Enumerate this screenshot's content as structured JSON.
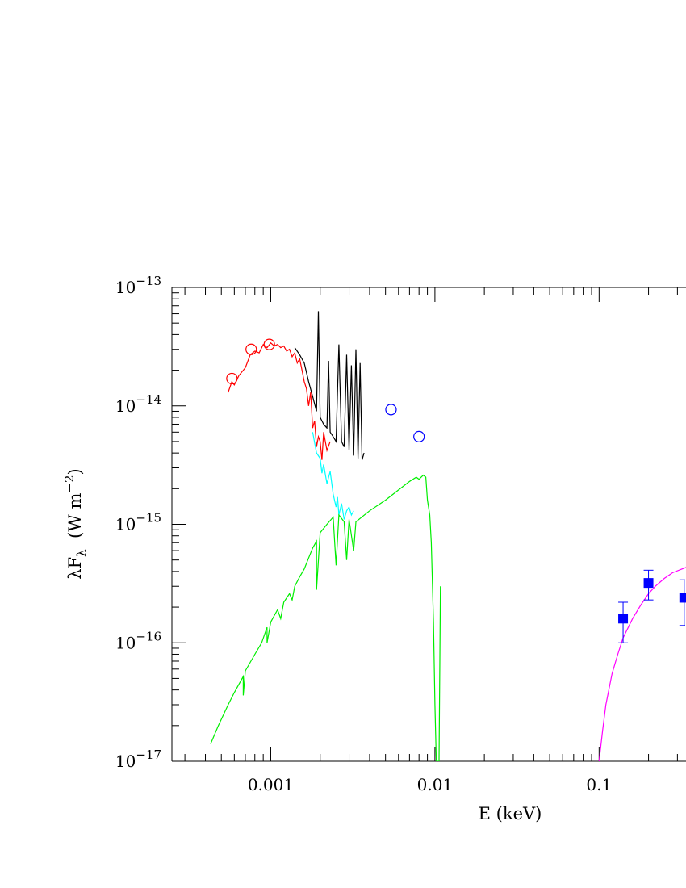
{
  "chart_data": {
    "type": "scatter",
    "title": "",
    "xlabel": "E (keV)",
    "ylabel": "λF_λ (W m^-2)",
    "xscale": "log",
    "yscale": "log",
    "xlim": [
      0.00025,
      0.35
    ],
    "ylim": [
      1e-17,
      1e-13
    ],
    "grid": false,
    "x_ticks": [
      {
        "value": 0.001,
        "label": "0.001"
      },
      {
        "value": 0.01,
        "label": "0.01"
      },
      {
        "value": 0.1,
        "label": "0.1"
      }
    ],
    "y_ticks": [
      {
        "value": 1e-13,
        "base": "10",
        "exp": "−13"
      },
      {
        "value": 1e-14,
        "base": "10",
        "exp": "−14"
      },
      {
        "value": 1e-15,
        "base": "10",
        "exp": "−15"
      },
      {
        "value": 1e-16,
        "base": "10",
        "exp": "−16"
      },
      {
        "value": 1e-17,
        "base": "10",
        "exp": "−17"
      }
    ],
    "ylabel_parts": {
      "lambda": "λ",
      "F": "F",
      "sub": "λ",
      "unit": "(W m",
      "exp": "−2",
      "close": ")"
    },
    "series": [
      {
        "kind": "line",
        "color": "#ff0000",
        "points": [
          [
            0.00055,
            1.3e-14
          ],
          [
            0.00058,
            1.6e-14
          ],
          [
            0.0006,
            1.5e-14
          ],
          [
            0.00064,
            1.8e-14
          ],
          [
            0.0007,
            2.1e-14
          ],
          [
            0.00075,
            2.7e-14
          ],
          [
            0.0008,
            2.9e-14
          ],
          [
            0.00085,
            2.8e-14
          ],
          [
            0.0009,
            3.3e-14
          ],
          [
            0.00095,
            3.1e-14
          ],
          [
            0.001,
            3.4e-14
          ],
          [
            0.00105,
            3.2e-14
          ],
          [
            0.0011,
            3.3e-14
          ],
          [
            0.00115,
            3.1e-14
          ],
          [
            0.0012,
            3.2e-14
          ],
          [
            0.00125,
            2.9e-14
          ],
          [
            0.0013,
            3e-14
          ],
          [
            0.00135,
            2.6e-14
          ],
          [
            0.0014,
            2.8e-14
          ],
          [
            0.00145,
            2.3e-14
          ],
          [
            0.0015,
            2.5e-14
          ],
          [
            0.00155,
            2e-14
          ],
          [
            0.0016,
            1.6e-14
          ],
          [
            0.00165,
            1.4e-14
          ],
          [
            0.0017,
            1e-14
          ],
          [
            0.00175,
            1.3e-14
          ],
          [
            0.0018,
            6.5e-15
          ],
          [
            0.00185,
            7.5e-15
          ],
          [
            0.0019,
            4.5e-15
          ],
          [
            0.00195,
            5.5e-15
          ],
          [
            0.002,
            5e-15
          ],
          [
            0.00205,
            3.5e-15
          ],
          [
            0.0021,
            6e-15
          ],
          [
            0.0022,
            4.2e-15
          ],
          [
            0.0023,
            5e-15
          ]
        ]
      },
      {
        "kind": "line",
        "color": "#000000",
        "points": [
          [
            0.0014,
            3.1e-14
          ],
          [
            0.0015,
            2.7e-14
          ],
          [
            0.0016,
            2.3e-14
          ],
          [
            0.0017,
            1.6e-14
          ],
          [
            0.0018,
            1.2e-14
          ],
          [
            0.0019,
            9e-15
          ],
          [
            0.00195,
            6.3e-14
          ],
          [
            0.002,
            8e-15
          ],
          [
            0.0021,
            7e-15
          ],
          [
            0.0022,
            6.5e-15
          ],
          [
            0.00225,
            2.4e-14
          ],
          [
            0.0023,
            6e-15
          ],
          [
            0.0024,
            5.5e-15
          ],
          [
            0.0025,
            5e-15
          ],
          [
            0.0026,
            3.3e-14
          ],
          [
            0.0027,
            5e-15
          ],
          [
            0.0028,
            4.5e-15
          ],
          [
            0.0029,
            2.7e-14
          ],
          [
            0.003,
            4.2e-15
          ],
          [
            0.0031,
            2.2e-14
          ],
          [
            0.0032,
            3.8e-15
          ],
          [
            0.0033,
            3e-14
          ],
          [
            0.0034,
            3.6e-15
          ],
          [
            0.0035,
            2.3e-14
          ],
          [
            0.0036,
            3.5e-15
          ],
          [
            0.0037,
            4e-15
          ]
        ]
      },
      {
        "kind": "line",
        "color": "#00ffff",
        "points": [
          [
            0.0018,
            6e-15
          ],
          [
            0.0019,
            4e-15
          ],
          [
            0.002,
            3.6e-15
          ],
          [
            0.00205,
            2.7e-15
          ],
          [
            0.0021,
            3.2e-15
          ],
          [
            0.0022,
            2.2e-15
          ],
          [
            0.0023,
            2.8e-15
          ],
          [
            0.0024,
            1.8e-15
          ],
          [
            0.0025,
            1.4e-15
          ],
          [
            0.00255,
            1.7e-15
          ],
          [
            0.0026,
            1.2e-15
          ],
          [
            0.0027,
            1.5e-15
          ],
          [
            0.0028,
            1.1e-15
          ],
          [
            0.0029,
            1.3e-15
          ],
          [
            0.003,
            1.4e-15
          ],
          [
            0.0031,
            1.2e-15
          ],
          [
            0.0032,
            1.3e-15
          ]
        ]
      },
      {
        "kind": "line",
        "color": "#00ee00",
        "points": [
          [
            0.00043,
            1.4e-17
          ],
          [
            0.00048,
            2e-17
          ],
          [
            0.00055,
            3e-17
          ],
          [
            0.0006,
            3.8e-17
          ],
          [
            0.00068,
            5.2e-17
          ],
          [
            0.00068,
            3.6e-17
          ],
          [
            0.0007,
            5.8e-17
          ],
          [
            0.0008,
            8e-17
          ],
          [
            0.00088,
            1e-16
          ],
          [
            0.00095,
            1.35e-16
          ],
          [
            0.00095,
            1e-16
          ],
          [
            0.001,
            1.5e-16
          ],
          [
            0.0011,
            1.9e-16
          ],
          [
            0.00115,
            1.6e-16
          ],
          [
            0.0012,
            2.2e-16
          ],
          [
            0.0013,
            2.6e-16
          ],
          [
            0.00135,
            2.3e-16
          ],
          [
            0.0014,
            3e-16
          ],
          [
            0.0015,
            3.6e-16
          ],
          [
            0.0016,
            4.2e-16
          ],
          [
            0.0017,
            5.2e-16
          ],
          [
            0.0018,
            6.3e-16
          ],
          [
            0.0019,
            7.2e-16
          ],
          [
            0.0019,
            2.8e-16
          ],
          [
            0.002,
            8.5e-16
          ],
          [
            0.0022,
            1e-15
          ],
          [
            0.0024,
            1.15e-15
          ],
          [
            0.0025,
            4.5e-16
          ],
          [
            0.0026,
            1.2e-15
          ],
          [
            0.0028,
            1.05e-15
          ],
          [
            0.0029,
            5e-16
          ],
          [
            0.003,
            1.1e-15
          ],
          [
            0.0032,
            6e-16
          ],
          [
            0.0033,
            1.05e-15
          ],
          [
            0.004,
            1.3e-15
          ],
          [
            0.005,
            1.6e-15
          ],
          [
            0.006,
            1.95e-15
          ],
          [
            0.007,
            2.3e-15
          ],
          [
            0.0077,
            2.5e-15
          ],
          [
            0.008,
            2.4e-15
          ],
          [
            0.0085,
            2.6e-15
          ],
          [
            0.0088,
            2.5e-15
          ],
          [
            0.009,
            1.6e-15
          ],
          [
            0.0093,
            1.2e-15
          ],
          [
            0.0095,
            7e-16
          ],
          [
            0.0098,
            1.5e-16
          ],
          [
            0.01,
            3e-17
          ],
          [
            0.0102,
            1e-17
          ],
          [
            0.0106,
            1e-17
          ],
          [
            0.0108,
            3e-16
          ]
        ]
      },
      {
        "kind": "line",
        "color": "#ff00ff",
        "points": [
          [
            0.1,
            1e-17
          ],
          [
            0.105,
            1.8e-17
          ],
          [
            0.11,
            3e-17
          ],
          [
            0.12,
            5.5e-17
          ],
          [
            0.13,
            8e-17
          ],
          [
            0.14,
            1.1e-16
          ],
          [
            0.16,
            1.6e-16
          ],
          [
            0.18,
            2.1e-16
          ],
          [
            0.2,
            2.6e-16
          ],
          [
            0.22,
            3e-16
          ],
          [
            0.25,
            3.5e-16
          ],
          [
            0.28,
            3.9e-16
          ],
          [
            0.32,
            4.2e-16
          ],
          [
            0.35,
            4.4e-16
          ]
        ]
      },
      {
        "kind": "open-circles",
        "color": "#ff0000",
        "points": [
          [
            0.00058,
            1.7e-14
          ],
          [
            0.00076,
            3e-14
          ],
          [
            0.00098,
            3.3e-14
          ]
        ]
      },
      {
        "kind": "open-circles",
        "color": "#0000ff",
        "points": [
          [
            0.0054,
            9.3e-15
          ],
          [
            0.008,
            5.5e-15
          ]
        ]
      },
      {
        "kind": "filled-squares-errorbars",
        "color": "#0000ff",
        "points": [
          {
            "x": 0.14,
            "y": 1.6e-16,
            "ylo": 1e-16,
            "yhi": 2.2e-16
          },
          {
            "x": 0.2,
            "y": 3.2e-16,
            "ylo": 2.3e-16,
            "yhi": 4.1e-16
          },
          {
            "x": 0.33,
            "y": 2.4e-16,
            "ylo": 1.4e-16,
            "yhi": 3.4e-16
          }
        ]
      }
    ]
  }
}
